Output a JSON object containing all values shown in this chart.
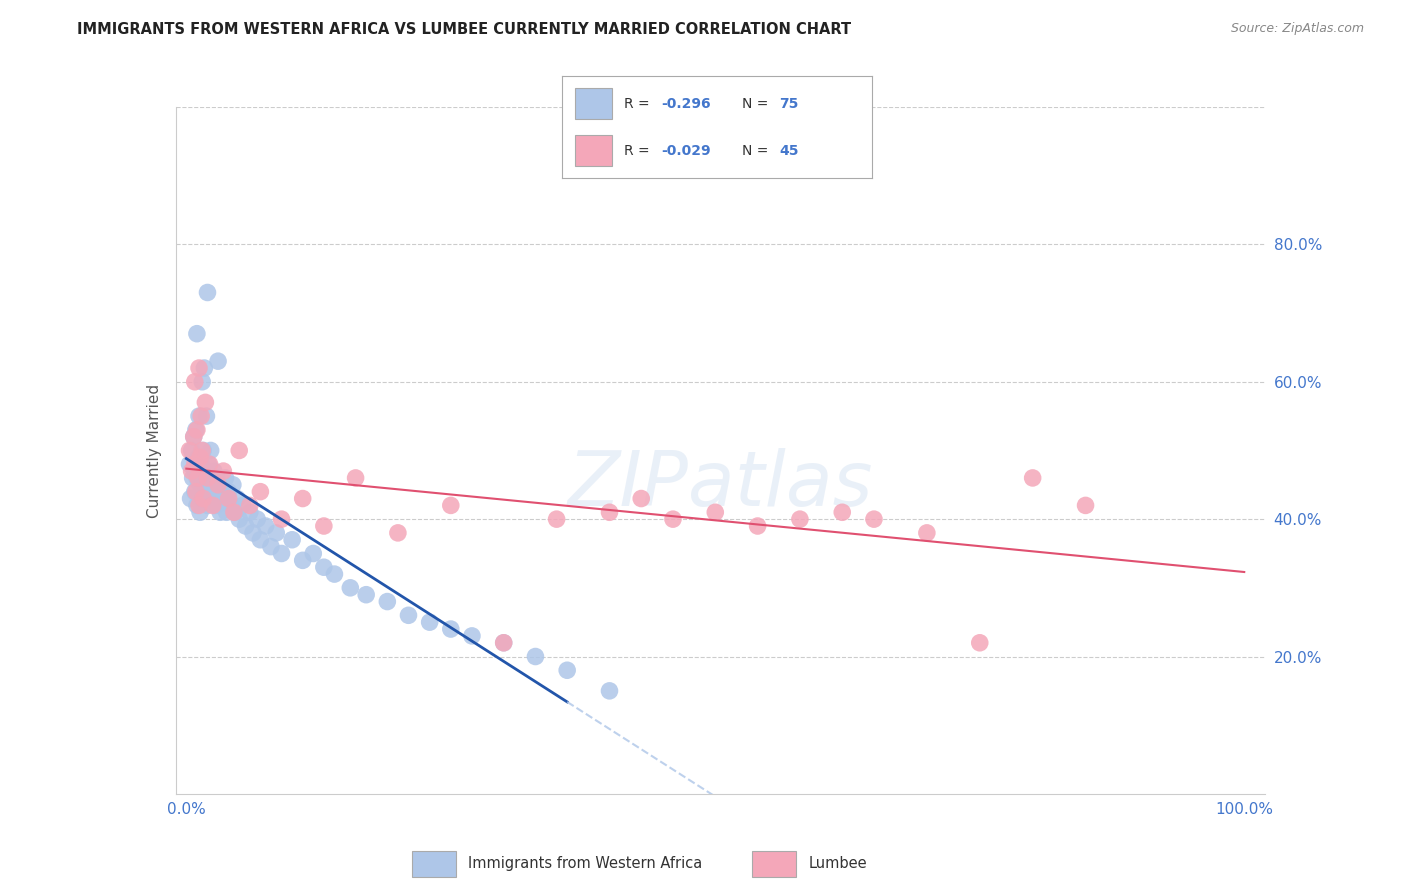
{
  "title": "IMMIGRANTS FROM WESTERN AFRICA VS LUMBEE CURRENTLY MARRIED CORRELATION CHART",
  "source": "Source: ZipAtlas.com",
  "ylabel": "Currently Married",
  "legend_label1": "Immigrants from Western Africa",
  "legend_label2": "Lumbee",
  "R1": -0.296,
  "N1": 75,
  "R2": -0.029,
  "N2": 45,
  "color_blue": "#aec6e8",
  "color_pink": "#f4a7b9",
  "line_blue": "#2255aa",
  "line_pink": "#e05070",
  "watermark": "ZIPatlas",
  "blue_x": [
    0.003,
    0.004,
    0.005,
    0.006,
    0.007,
    0.008,
    0.008,
    0.009,
    0.01,
    0.01,
    0.011,
    0.012,
    0.013,
    0.013,
    0.014,
    0.015,
    0.015,
    0.016,
    0.017,
    0.018,
    0.018,
    0.019,
    0.02,
    0.02,
    0.021,
    0.022,
    0.023,
    0.024,
    0.025,
    0.026,
    0.027,
    0.028,
    0.029,
    0.03,
    0.031,
    0.032,
    0.033,
    0.035,
    0.037,
    0.038,
    0.04,
    0.042,
    0.044,
    0.046,
    0.048,
    0.05,
    0.053,
    0.056,
    0.06,
    0.063,
    0.067,
    0.07,
    0.075,
    0.08,
    0.085,
    0.09,
    0.1,
    0.11,
    0.12,
    0.13,
    0.14,
    0.155,
    0.17,
    0.19,
    0.21,
    0.23,
    0.25,
    0.27,
    0.3,
    0.33,
    0.36,
    0.4,
    0.01,
    0.02,
    0.03
  ],
  "blue_y": [
    0.48,
    0.43,
    0.5,
    0.46,
    0.52,
    0.47,
    0.44,
    0.53,
    0.46,
    0.42,
    0.49,
    0.55,
    0.45,
    0.41,
    0.48,
    0.6,
    0.44,
    0.5,
    0.62,
    0.47,
    0.43,
    0.55,
    0.46,
    0.42,
    0.48,
    0.44,
    0.5,
    0.46,
    0.43,
    0.47,
    0.44,
    0.42,
    0.46,
    0.43,
    0.45,
    0.41,
    0.44,
    0.43,
    0.46,
    0.41,
    0.44,
    0.42,
    0.45,
    0.41,
    0.43,
    0.4,
    0.42,
    0.39,
    0.41,
    0.38,
    0.4,
    0.37,
    0.39,
    0.36,
    0.38,
    0.35,
    0.37,
    0.34,
    0.35,
    0.33,
    0.32,
    0.3,
    0.29,
    0.28,
    0.26,
    0.25,
    0.24,
    0.23,
    0.22,
    0.2,
    0.18,
    0.15,
    0.67,
    0.73,
    0.63
  ],
  "pink_x": [
    0.003,
    0.005,
    0.007,
    0.008,
    0.009,
    0.01,
    0.011,
    0.012,
    0.013,
    0.014,
    0.015,
    0.016,
    0.018,
    0.02,
    0.022,
    0.025,
    0.03,
    0.035,
    0.04,
    0.045,
    0.05,
    0.06,
    0.07,
    0.09,
    0.11,
    0.13,
    0.16,
    0.2,
    0.25,
    0.3,
    0.35,
    0.4,
    0.43,
    0.46,
    0.5,
    0.54,
    0.58,
    0.62,
    0.65,
    0.7,
    0.75,
    0.8,
    0.85,
    0.008,
    0.012
  ],
  "pink_y": [
    0.5,
    0.47,
    0.52,
    0.48,
    0.44,
    0.53,
    0.46,
    0.42,
    0.49,
    0.55,
    0.5,
    0.43,
    0.57,
    0.46,
    0.48,
    0.42,
    0.45,
    0.47,
    0.43,
    0.41,
    0.5,
    0.42,
    0.44,
    0.4,
    0.43,
    0.39,
    0.46,
    0.38,
    0.42,
    0.22,
    0.4,
    0.41,
    0.43,
    0.4,
    0.41,
    0.39,
    0.4,
    0.41,
    0.4,
    0.38,
    0.22,
    0.46,
    0.42,
    0.6,
    0.62
  ]
}
